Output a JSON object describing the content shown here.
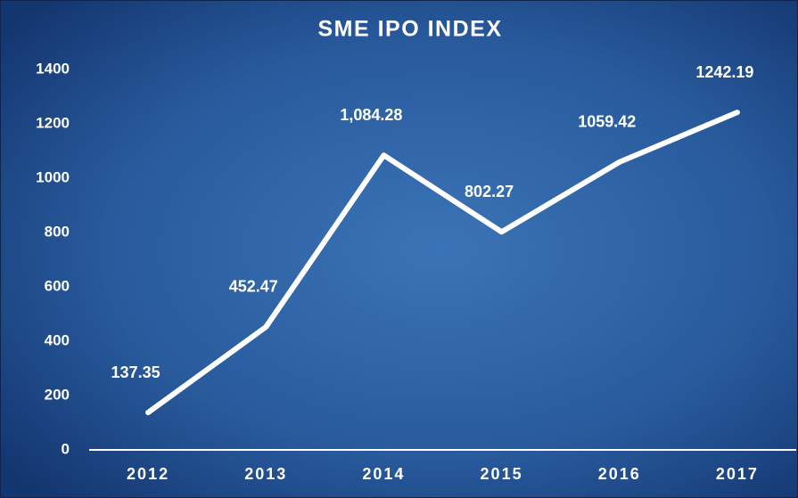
{
  "chart_data": {
    "type": "line",
    "title": "SME IPO INDEX",
    "categories": [
      "2012",
      "2013",
      "2014",
      "2015",
      "2016",
      "2017"
    ],
    "values": [
      137.35,
      452.47,
      1084.28,
      802.27,
      1059.42,
      1242.19
    ],
    "value_labels": [
      "137.35",
      "452.47",
      "1,084.28",
      "802.27",
      "1059.42",
      "1242.19"
    ],
    "color": "#ffffff",
    "ylim": [
      0,
      1400
    ],
    "yticks": [
      0,
      200,
      400,
      600,
      800,
      1000,
      1200,
      1400
    ],
    "grid": false
  }
}
